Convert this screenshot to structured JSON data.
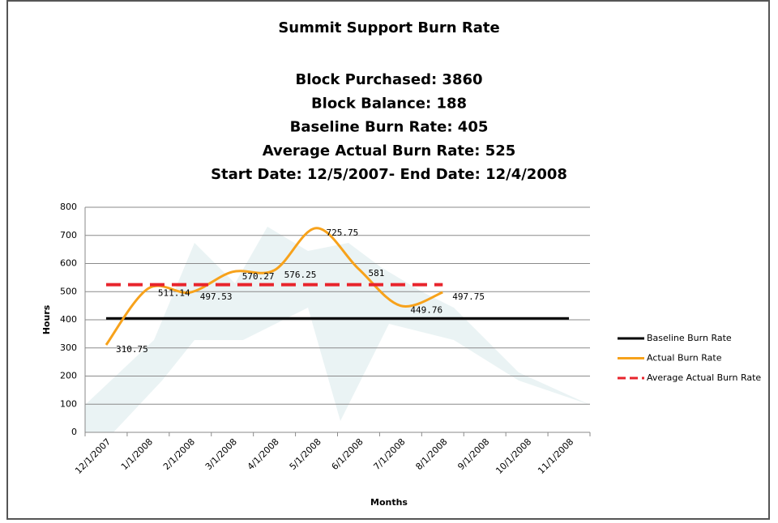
{
  "chart_data": {
    "type": "line",
    "title": "Summit Support Burn Rate",
    "subtitle": [
      "Block Purchased: 3860",
      "Block Balance: 188",
      "Baseline Burn Rate: 405",
      "Average Actual Burn Rate: 525",
      "Start Date: 12/5/2007- End Date: 12/4/2008"
    ],
    "x_label": "Months",
    "y_label": "Hours",
    "categories": [
      "12/1/2007",
      "1/1/2008",
      "2/1/2008",
      "3/1/2008",
      "4/1/2008",
      "5/1/2008",
      "6/1/2008",
      "7/1/2008",
      "8/1/2008",
      "9/1/2008",
      "10/1/2008",
      "11/1/2008"
    ],
    "series": [
      {
        "name": "Baseline Burn Rate",
        "color": "#000000",
        "dash": false,
        "smooth": false,
        "labels": false,
        "values": [
          405,
          405,
          405,
          405,
          405,
          405,
          405,
          405,
          405,
          405,
          405,
          405
        ]
      },
      {
        "name": "Actual Burn Rate",
        "color": "#f7a21b",
        "dash": false,
        "smooth": true,
        "labels": true,
        "values": [
          310.75,
          511.14,
          497.53,
          570.27,
          576.25,
          725.75,
          581,
          449.76,
          497.75,
          null,
          null,
          null
        ]
      },
      {
        "name": "Average Actual Burn Rate",
        "color": "#e8242c",
        "dash": true,
        "smooth": false,
        "labels": false,
        "values": [
          525,
          525,
          525,
          525,
          525,
          525,
          525,
          525,
          525,
          null,
          null,
          null
        ]
      }
    ],
    "ylim": [
      0,
      800
    ],
    "yticks": [
      0,
      100,
      200,
      300,
      400,
      500,
      600,
      700,
      800
    ],
    "grid": true,
    "legend": "right"
  }
}
